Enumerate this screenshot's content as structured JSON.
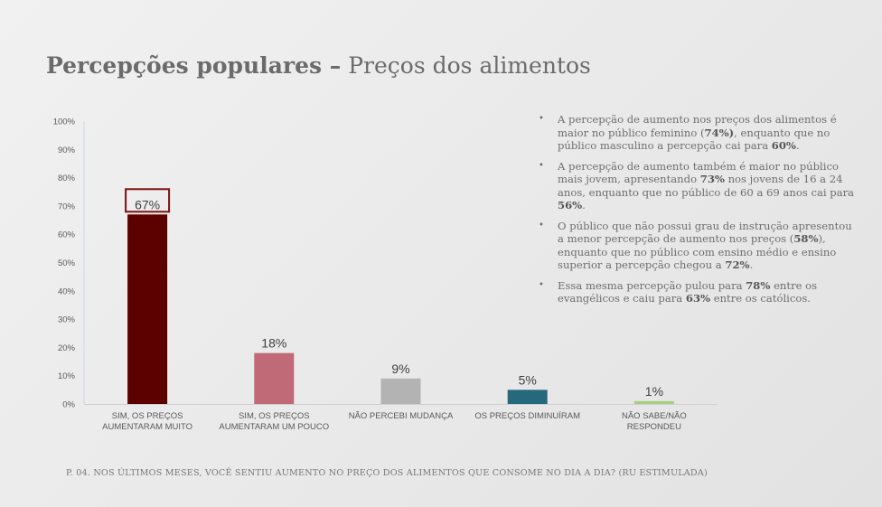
{
  "header": {
    "title_bold": "Percepções populares –",
    "title_light": "Preços dos alimentos"
  },
  "bullets": [
    [
      {
        "t": "A percepção de aumento nos preços dos alimentos é maior no público feminino (",
        "b": false
      },
      {
        "t": "74%)",
        "b": true
      },
      {
        "t": ", enquanto que no público masculino a percepção cai para ",
        "b": false
      },
      {
        "t": "60%",
        "b": true
      },
      {
        "t": ".",
        "b": false
      }
    ],
    [
      {
        "t": "A percepção de aumento também é maior no público mais jovem, apresentando ",
        "b": false
      },
      {
        "t": "73%",
        "b": true
      },
      {
        "t": " nos jovens de 16 a 24 anos, enquanto que no público de 60 a 69 anos cai para ",
        "b": false
      },
      {
        "t": "56%",
        "b": true
      },
      {
        "t": ".",
        "b": false
      }
    ],
    [
      {
        "t": "O público que não possui grau de instrução apresentou a menor percepção de aumento nos preços (",
        "b": false
      },
      {
        "t": "58%",
        "b": true
      },
      {
        "t": "), enquanto que no público com ensino médio e ensino superior a percepção chegou a ",
        "b": false
      },
      {
        "t": "72%",
        "b": true
      },
      {
        "t": ".",
        "b": false
      }
    ],
    [
      {
        "t": "Essa mesma percepção pulou para ",
        "b": false
      },
      {
        "t": "78%",
        "b": true
      },
      {
        "t": " entre os evangélicos e caiu para ",
        "b": false
      },
      {
        "t": "63%",
        "b": true
      },
      {
        "t": " entre os católicos.",
        "b": false
      }
    ]
  ],
  "footnote": "P. 04. NOS ÚLTIMOS MESES, VOCÊ SENTIU AUMENTO NO PREÇO DOS ALIMENTOS QUE CONSOME NO DIA A DIA? (RU ESTIMULADA)",
  "chart_data": {
    "type": "bar",
    "categories": [
      [
        "SIM, OS PREÇOS",
        "AUMENTARAM MUITO"
      ],
      [
        "SIM, OS PREÇOS",
        "AUMENTARAM UM POUCO"
      ],
      [
        "NÃO PERCEBI MUDANÇA"
      ],
      [
        "OS PREÇOS DIMINUÍRAM"
      ],
      [
        "NÃO SABE/NÃO",
        "RESPONDEU"
      ]
    ],
    "values": [
      67,
      18,
      9,
      5,
      1
    ],
    "data_labels": [
      "67%",
      "18%",
      "9%",
      "5%",
      "1%"
    ],
    "colors": [
      "#5c0000",
      "#c06a78",
      "#b3b3b3",
      "#26687c",
      "#a8cd7e"
    ],
    "yticks": [
      "0%",
      "10%",
      "20%",
      "30%",
      "40%",
      "50%",
      "60%",
      "70%",
      "80%",
      "90%",
      "100%"
    ],
    "ylim": [
      0,
      100
    ],
    "highlight_index": 0,
    "highlight_color": "#7a1010"
  }
}
